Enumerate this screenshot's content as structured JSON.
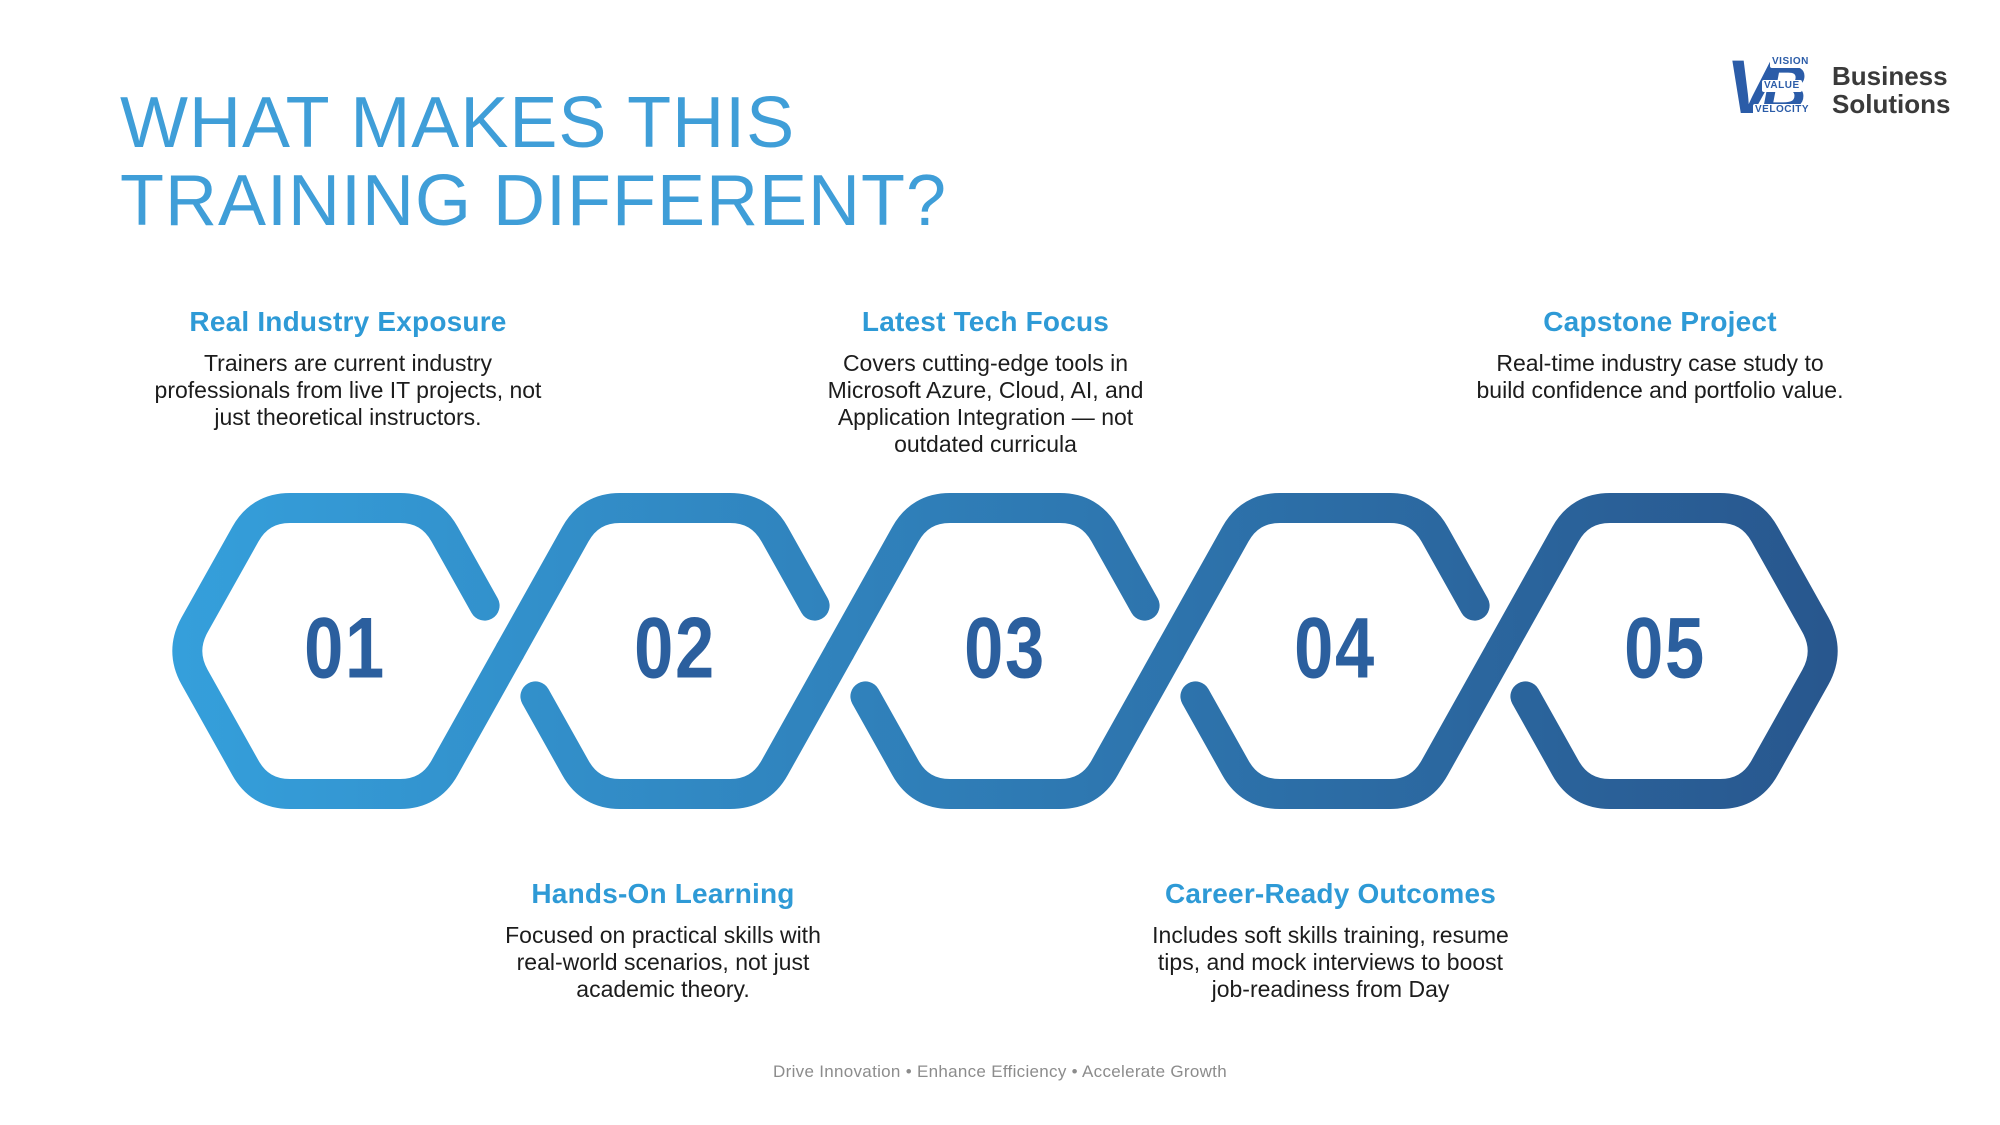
{
  "slide": {
    "title_line1": "WHAT MAKES THIS",
    "title_line2": "TRAINING DIFFERENT?"
  },
  "logo": {
    "v": "V",
    "b": "B",
    "word1": "VISION",
    "word2": "VALUE",
    "word3": "VELOCITY",
    "name_line1": "Business",
    "name_line2": "Solutions"
  },
  "features": [
    {
      "number": "01",
      "title": "Real Industry Exposure",
      "body": "Trainers are current industry professionals from live IT projects, not just theoretical instructors.",
      "position": "top"
    },
    {
      "number": "02",
      "title": "Hands-On Learning",
      "body": "Focused on practical skills with real-world scenarios, not just academic theory.",
      "position": "bottom"
    },
    {
      "number": "03",
      "title": "Latest Tech Focus",
      "body": "Covers cutting-edge tools in Microsoft Azure, Cloud, AI, and Application Integration — not outdated curricula",
      "position": "top"
    },
    {
      "number": "04",
      "title": "Career-Ready Outcomes",
      "body": "Includes soft skills training, resume tips, and mock interviews to boost job-readiness from Day",
      "position": "bottom"
    },
    {
      "number": "05",
      "title": "Capstone Project",
      "body": "Real-time industry case study to build confidence and portfolio value.",
      "position": "top"
    }
  ],
  "hexagons": [
    {
      "number": "01"
    },
    {
      "number": "02"
    },
    {
      "number": "03"
    },
    {
      "number": "04"
    },
    {
      "number": "05"
    }
  ],
  "colors": {
    "title_blue": "#3F9ED8",
    "heading_blue": "#2E9AD6",
    "body_text": "#1C1C1C",
    "hex_gradient_start": "#35A0DC",
    "hex_gradient_end": "#28568D",
    "hex_number": "#2B5F9E",
    "logo_blue": "#2B5CA8",
    "logo_text": "#3A3A3A",
    "footer_gray": "#8C8C8C"
  },
  "footer": {
    "tagline": "Drive Innovation • Enhance Efficiency • Accelerate Growth"
  }
}
